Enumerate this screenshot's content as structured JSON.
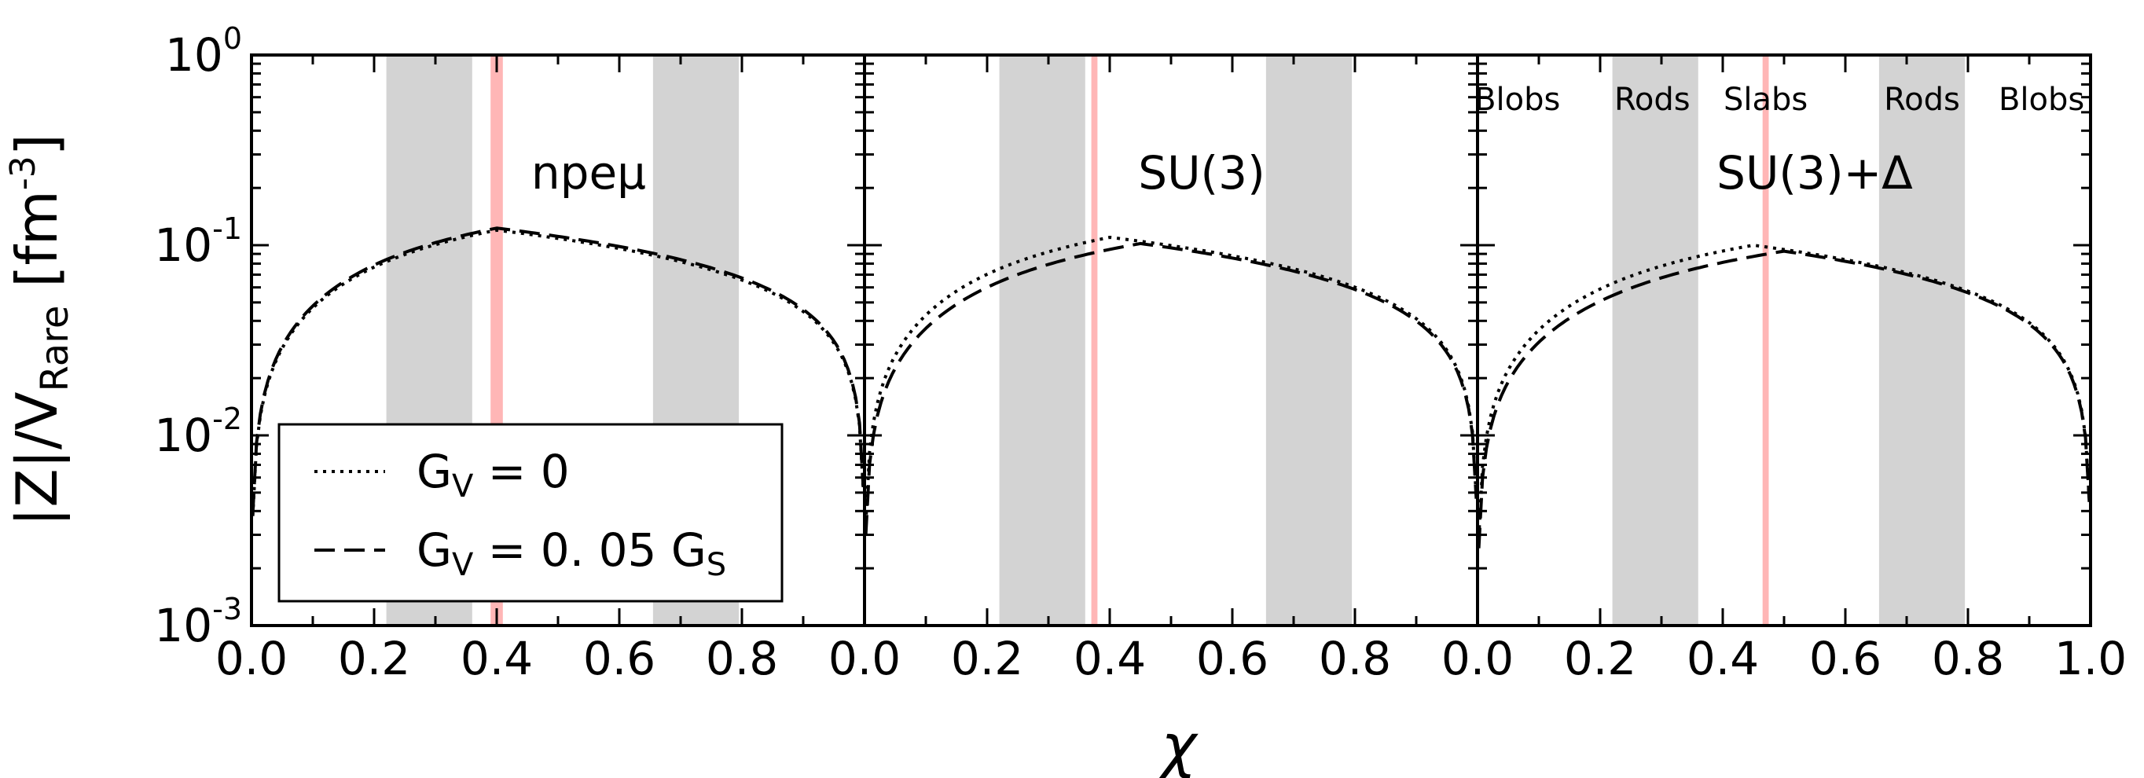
{
  "chart_data": {
    "type": "line",
    "xlabel": "χ",
    "ylabel": "|Z|/V_Rare [fm^-3]",
    "yscale": "log",
    "ylim": [
      0.001,
      1
    ],
    "xlim": [
      0,
      1
    ],
    "x_tick_labels": [
      "0.0",
      "0.2",
      "0.4",
      "0.6",
      "0.8",
      "0.0",
      "0.2",
      "0.4",
      "0.6",
      "0.8",
      "0.0",
      "0.2",
      "0.4",
      "0.6",
      "0.8",
      "1.0"
    ],
    "y_ticks": [
      {
        "base": "10",
        "exp": "0",
        "value": 1
      },
      {
        "base": "10",
        "exp": "-1",
        "value": 0.1
      },
      {
        "base": "10",
        "exp": "-2",
        "value": 0.01
      },
      {
        "base": "10",
        "exp": "-3",
        "value": 0.001
      }
    ],
    "legend": {
      "placement": "lower-left",
      "entries": [
        {
          "label": "G_V = 0",
          "style": "dotted"
        },
        {
          "label": "G_V = 0.05 G_S",
          "style": "dashed"
        }
      ]
    },
    "region_labels": [
      "Blobs",
      "Rods",
      "Slabs",
      "Rods",
      "Blobs"
    ],
    "panels": [
      {
        "label": "npeμ",
        "gray_bands": [
          [
            0.22,
            0.36
          ],
          [
            0.655,
            0.795
          ]
        ],
        "red_band": [
          0.39,
          0.41
        ],
        "series": [
          {
            "style": "dotted",
            "peak_x": 0.4,
            "peak_y": 0.12
          },
          {
            "style": "dashed",
            "peak_x": 0.4,
            "peak_y": 0.123
          }
        ]
      },
      {
        "label": "SU(3)",
        "gray_bands": [
          [
            0.22,
            0.36
          ],
          [
            0.655,
            0.795
          ]
        ],
        "red_band": [
          0.37,
          0.38
        ],
        "series": [
          {
            "style": "dotted",
            "peak_x": 0.4,
            "peak_y": 0.11
          },
          {
            "style": "dashed",
            "peak_x": 0.45,
            "peak_y": 0.102
          }
        ]
      },
      {
        "label": "SU(3)+Δ",
        "gray_bands": [
          [
            0.22,
            0.36
          ],
          [
            0.655,
            0.795
          ]
        ],
        "red_band": [
          0.465,
          0.475
        ],
        "series": [
          {
            "style": "dotted",
            "peak_x": 0.45,
            "peak_y": 0.1
          },
          {
            "style": "dashed",
            "peak_x": 0.5,
            "peak_y": 0.093
          }
        ]
      }
    ]
  }
}
